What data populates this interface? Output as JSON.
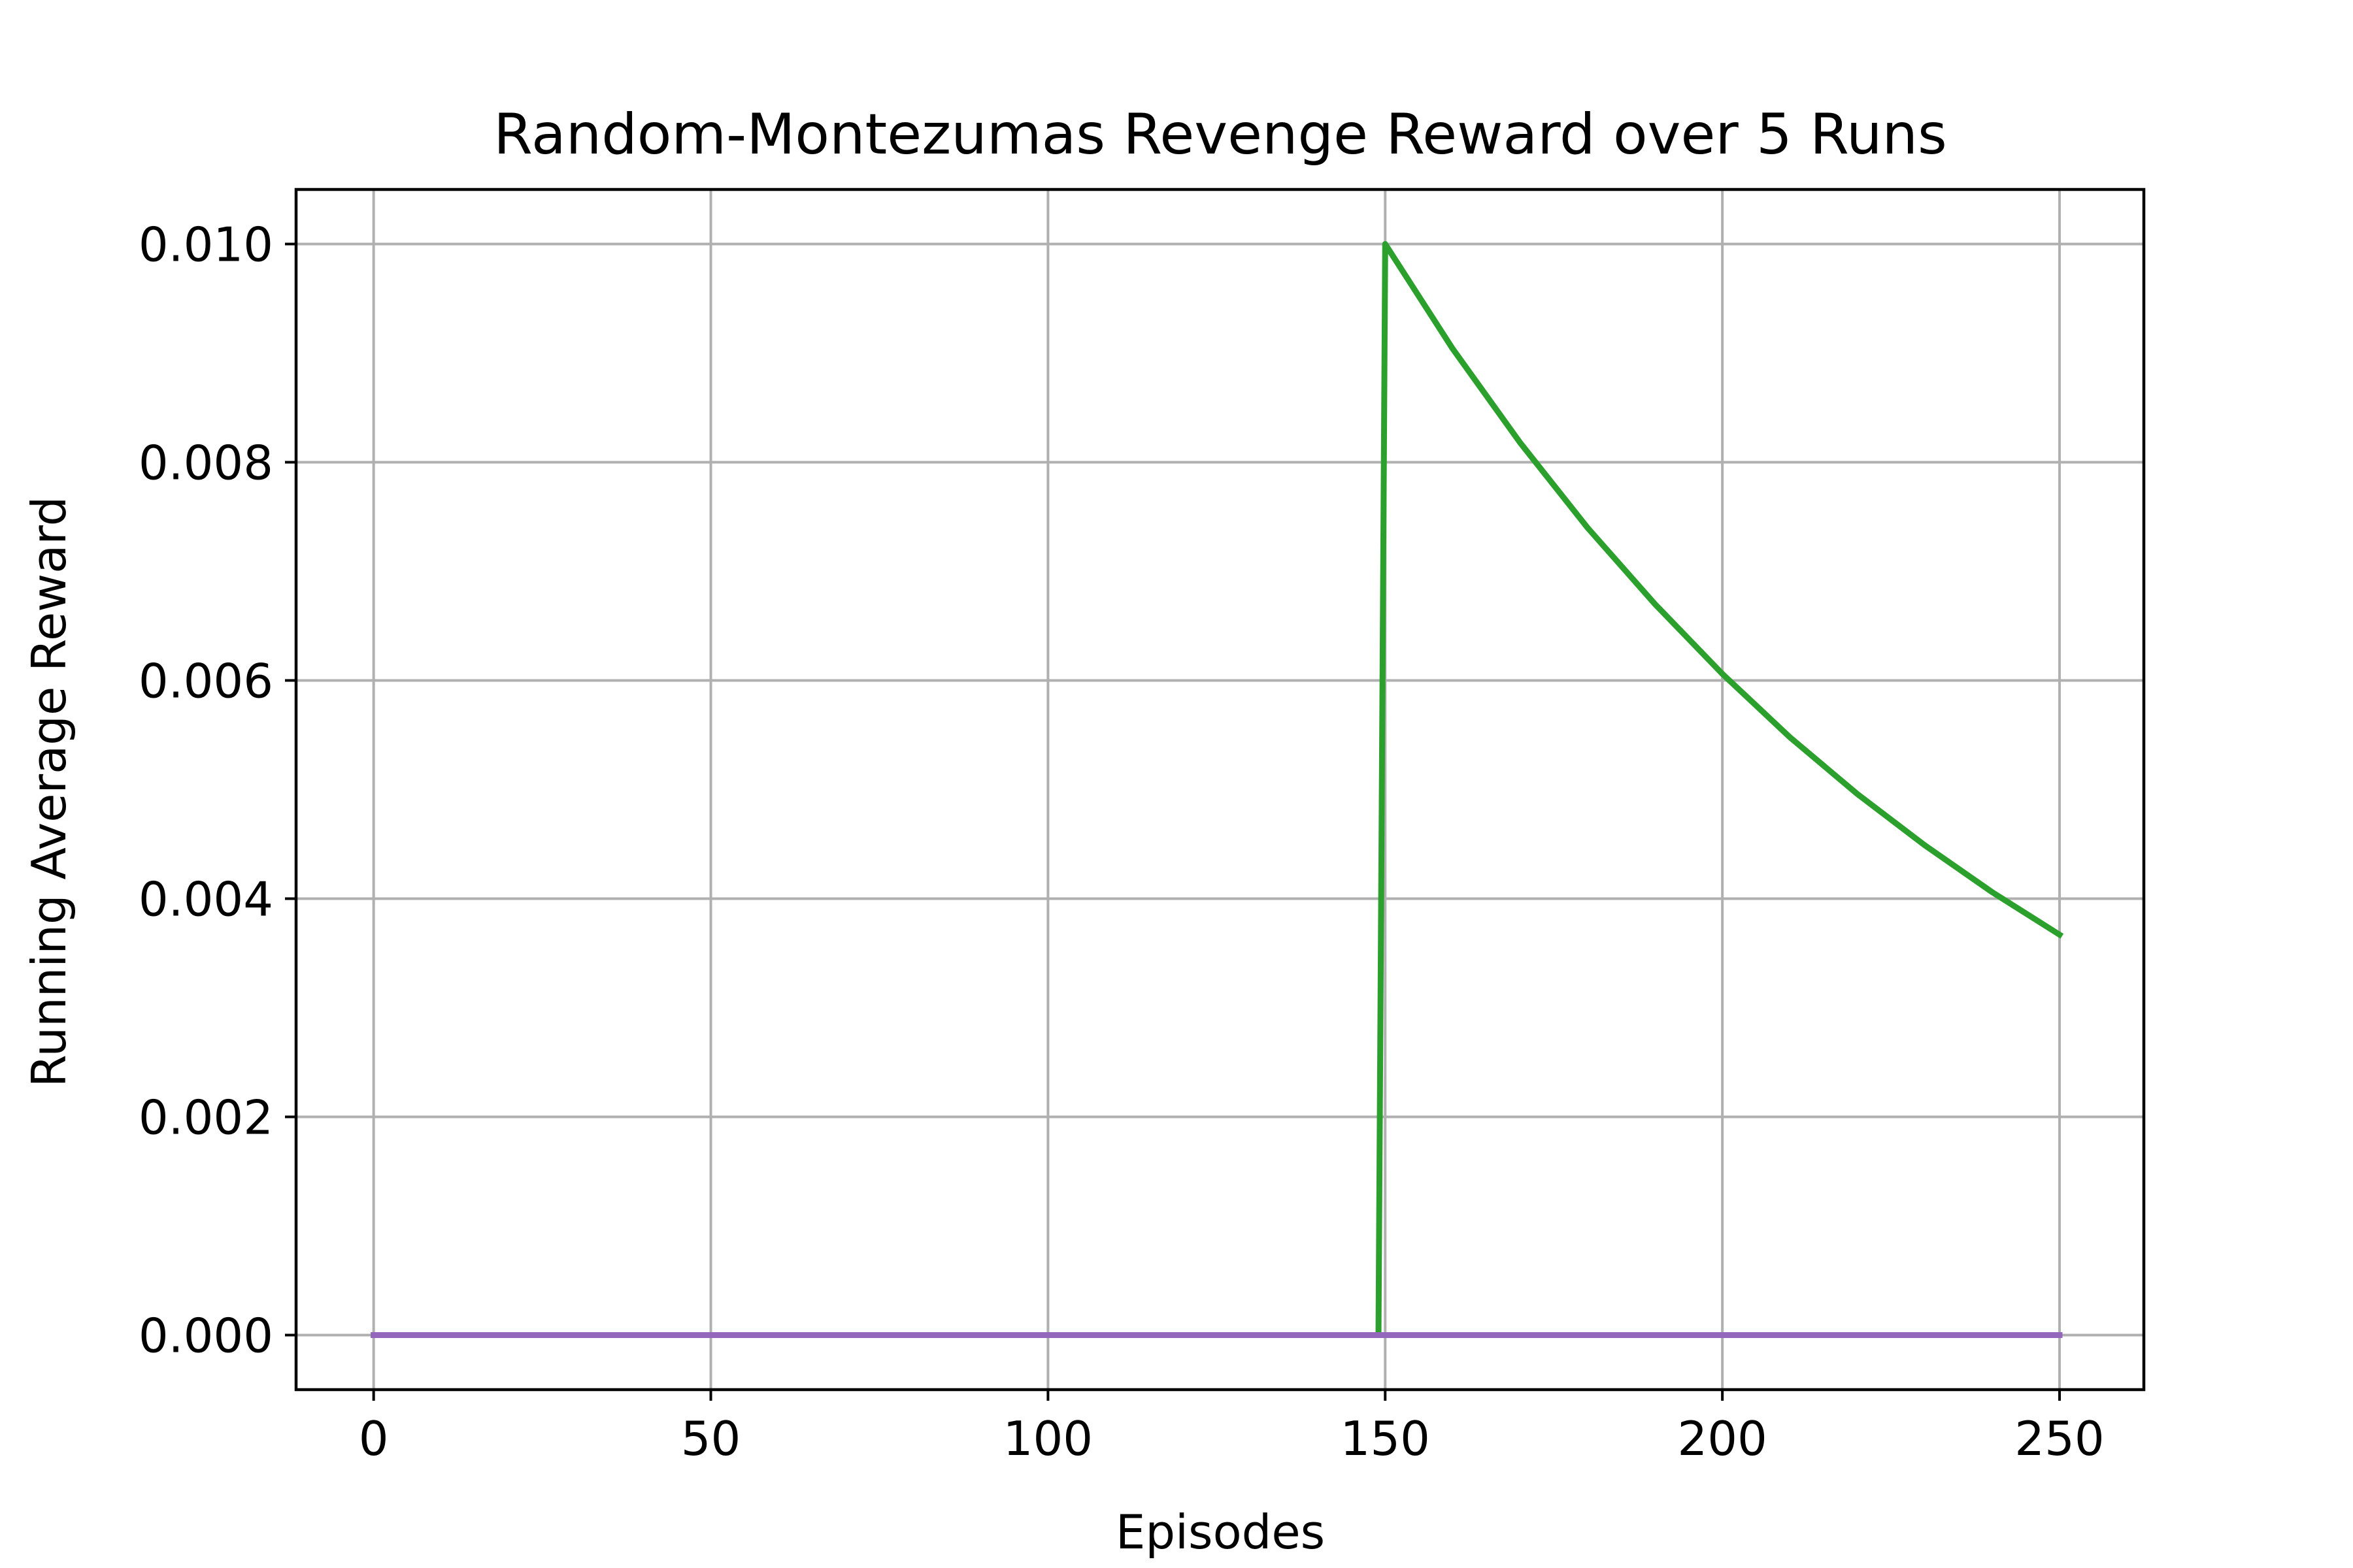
{
  "chart_data": {
    "type": "line",
    "title": "Random-Montezumas Revenge Reward over 5 Runs",
    "xlabel": "Episodes",
    "ylabel": "Running Average Reward",
    "xlim": [
      -11.5,
      262.5
    ],
    "ylim": [
      -0.0005,
      0.0105
    ],
    "x_ticks": [
      0,
      50,
      100,
      150,
      200,
      250
    ],
    "x_tick_labels": [
      "0",
      "50",
      "100",
      "150",
      "200",
      "250"
    ],
    "y_ticks": [
      0.0,
      0.002,
      0.004,
      0.006,
      0.008,
      0.01
    ],
    "y_tick_labels": [
      "0.000",
      "0.002",
      "0.004",
      "0.006",
      "0.008",
      "0.010"
    ],
    "grid": true,
    "legend": "none",
    "series": [
      {
        "color": "#2ca02c",
        "x": [
          0,
          50,
          100,
          149,
          150,
          160,
          170,
          180,
          190,
          200,
          210,
          220,
          230,
          240,
          250
        ],
        "y": [
          0.0,
          0.0,
          0.0,
          0.0,
          0.01,
          0.00904,
          0.00818,
          0.0074,
          0.0067,
          0.00606,
          0.00548,
          0.00496,
          0.00449,
          0.00406,
          0.00367
        ]
      },
      {
        "color": "#9467bd",
        "x": [
          0,
          50,
          100,
          150,
          200,
          250
        ],
        "y": [
          0.0,
          0.0,
          0.0,
          0.0,
          0.0,
          0.0
        ]
      }
    ]
  }
}
